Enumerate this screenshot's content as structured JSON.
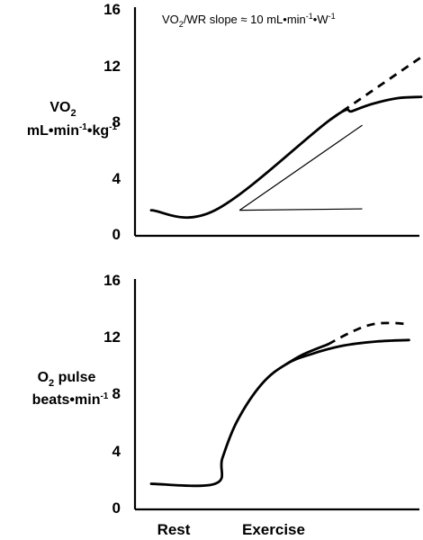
{
  "chart_data": [
    {
      "type": "line",
      "annotation": {
        "prefix": "VO",
        "sub1": "2",
        "middle": "/WR slope ≈ 10 mL•min",
        "sup1": "-1",
        "suffix": "•W",
        "sup2": "-1"
      },
      "ylabel": {
        "line1": "VO",
        "line1_sub": "2",
        "line2_parts": [
          "mL•min",
          "-1",
          "•kg",
          "-1"
        ]
      },
      "y_ticks": [
        "0",
        "4",
        "8",
        "12",
        "16"
      ],
      "ylim": [
        0,
        16
      ],
      "grid": false,
      "series": [
        {
          "style": "solid",
          "points": [
            [
              0,
              1.8
            ],
            [
              0.26,
              1.8
            ],
            [
              0.73,
              8.2
            ],
            [
              0.82,
              8.8
            ],
            [
              0.9,
              9.3
            ],
            [
              1.0,
              9.7
            ],
            [
              1.1,
              9.8
            ]
          ]
        },
        {
          "style": "dashed",
          "points": [
            [
              0.73,
              8.2
            ],
            [
              1.1,
              12.6
            ]
          ]
        }
      ],
      "slope_triangle": [
        [
          0.36,
          1.8
        ],
        [
          0.86,
          7.8
        ],
        [
          0.86,
          1.9
        ]
      ]
    },
    {
      "type": "line",
      "ylabel": {
        "line1": "O",
        "line1_sub": "2",
        "line1_rest": " pulse",
        "line2": "beats•min",
        "line2_sup": "-1"
      },
      "y_ticks": [
        "0",
        "4",
        "8",
        "12",
        "16"
      ],
      "ylim": [
        0,
        16
      ],
      "grid": false,
      "categories": [
        "Rest",
        "Exercise"
      ],
      "series": [
        {
          "style": "solid",
          "points": [
            [
              0,
              1.8
            ],
            [
              0.26,
              1.8
            ],
            [
              0.29,
              3.6
            ],
            [
              0.35,
              6.2
            ],
            [
              0.45,
              8.8
            ],
            [
              0.55,
              10.2
            ],
            [
              0.65,
              10.9
            ],
            [
              0.78,
              11.5
            ],
            [
              0.92,
              11.8
            ],
            [
              1.05,
              11.9
            ]
          ]
        },
        {
          "style": "solid",
          "points": [
            [
              0.55,
              10.2
            ],
            [
              0.62,
              10.9
            ],
            [
              0.72,
              11.6
            ]
          ]
        },
        {
          "style": "dashed",
          "points": [
            [
              0.72,
              11.6
            ],
            [
              0.82,
              12.5
            ],
            [
              0.9,
              13.0
            ],
            [
              0.98,
              13.1
            ],
            [
              1.05,
              13.0
            ]
          ]
        }
      ]
    }
  ]
}
